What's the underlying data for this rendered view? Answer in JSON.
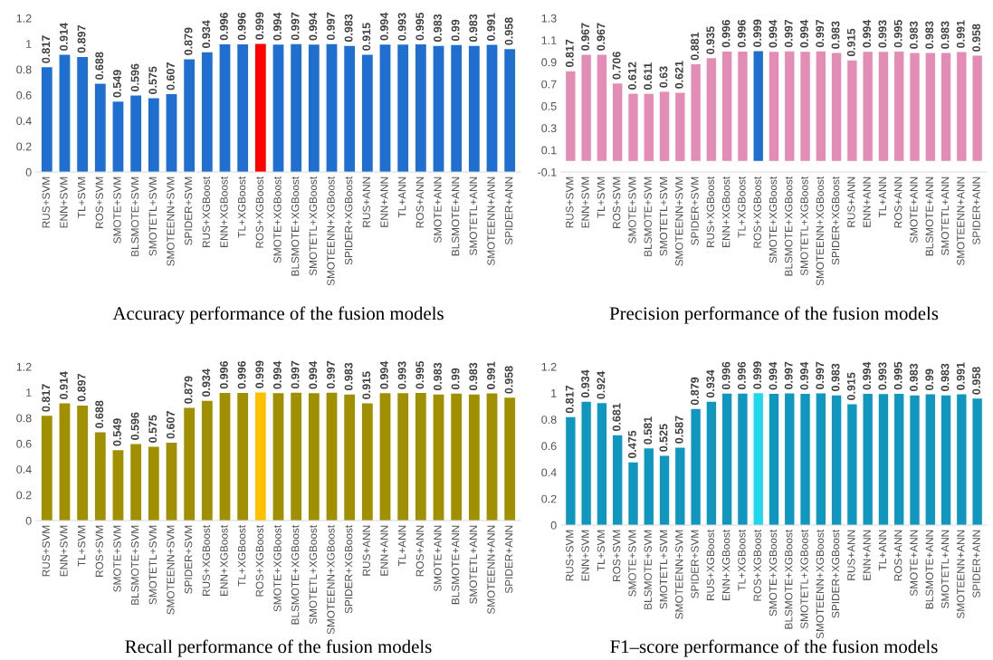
{
  "chart_data": [
    {
      "type": "bar",
      "title": "Accuracy performance of the fusion models",
      "categories": [
        "RUS+SVM",
        "ENN+SVM",
        "TL+SVM",
        "ROS+SVM",
        "SMOTE+SVM",
        "BLSMOTE+SVM",
        "SMOTETL+SVM",
        "SMOTEENN+SVM",
        "SPIDER+SVM",
        "RUS+XGBoost",
        "ENN+XGBoost",
        "TL+XGBoost",
        "ROS+XGBoost",
        "SMOTE+XGBoost",
        "BLSMOTE+XGBoost",
        "SMOTETL+XGBoost",
        "SMOTEENN+XGBoost",
        "SPIDER+XGBoost",
        "RUS+ANN",
        "ENN+ANN",
        "TL+ANN",
        "ROS+ANN",
        "SMOTE+ANN",
        "BLSMOTE+ANN",
        "SMOTETL+ANN",
        "SMOTEENN+ANN",
        "SPIDER+ANN"
      ],
      "values": [
        0.817,
        0.914,
        0.897,
        0.688,
        0.549,
        0.596,
        0.575,
        0.607,
        0.879,
        0.934,
        0.996,
        0.996,
        0.999,
        0.994,
        0.997,
        0.994,
        0.997,
        0.983,
        0.915,
        0.994,
        0.993,
        0.995,
        0.983,
        0.99,
        0.983,
        0.991,
        0.958
      ],
      "colors": [
        "#1f6fd0",
        "#1f6fd0",
        "#1f6fd0",
        "#1f6fd0",
        "#1f6fd0",
        "#1f6fd0",
        "#1f6fd0",
        "#1f6fd0",
        "#1f6fd0",
        "#1f6fd0",
        "#1f6fd0",
        "#1f6fd0",
        "#ff0000",
        "#1f6fd0",
        "#1f6fd0",
        "#1f6fd0",
        "#1f6fd0",
        "#1f6fd0",
        "#1f6fd0",
        "#1f6fd0",
        "#1f6fd0",
        "#1f6fd0",
        "#1f6fd0",
        "#1f6fd0",
        "#1f6fd0",
        "#1f6fd0",
        "#1f6fd0"
      ],
      "ylim": [
        0,
        1.2
      ],
      "yticks": [
        0,
        0.2,
        0.4,
        0.6,
        0.8,
        1,
        1.2
      ],
      "data_labels": true
    },
    {
      "type": "bar",
      "title": "Precision performance of the fusion models",
      "categories": [
        "RUS+SVM",
        "ENN+SVM",
        "TL+SVM",
        "ROS+SVM",
        "SMOTE+SVM",
        "BLSMOTE+SVM",
        "SMOTETL+SVM",
        "SMOTEENN+SVM",
        "SPIDER+SVM",
        "RUS+XGBoost",
        "ENN+XGBoost",
        "TL+XGBoost",
        "ROS+XGBoost",
        "SMOTE+XGBoost",
        "BLSMOTE+XGBoost",
        "SMOTETL+XGBoost",
        "SMOTEENN+XGBoost",
        "SPIDER+XGBoost",
        "RUS+ANN",
        "ENN+ANN",
        "TL+ANN",
        "ROS+ANN",
        "SMOTE+ANN",
        "BLSMOTE+ANN",
        "SMOTETL+ANN",
        "SMOTEENN+ANN",
        "SPIDER+ANN"
      ],
      "values": [
        0.817,
        0.967,
        0.967,
        0.706,
        0.612,
        0.611,
        0.63,
        0.621,
        0.881,
        0.935,
        0.996,
        0.996,
        0.999,
        0.994,
        0.997,
        0.994,
        0.997,
        0.983,
        0.915,
        0.994,
        0.993,
        0.995,
        0.983,
        0.983,
        0.983,
        0.991,
        0.958
      ],
      "colors": [
        "#e38cb5",
        "#e38cb5",
        "#e38cb5",
        "#e38cb5",
        "#e38cb5",
        "#e38cb5",
        "#e38cb5",
        "#e38cb5",
        "#e38cb5",
        "#e38cb5",
        "#e38cb5",
        "#e38cb5",
        "#1f6fd0",
        "#e38cb5",
        "#e38cb5",
        "#e38cb5",
        "#e38cb5",
        "#e38cb5",
        "#e38cb5",
        "#e38cb5",
        "#e38cb5",
        "#e38cb5",
        "#e38cb5",
        "#e38cb5",
        "#e38cb5",
        "#e38cb5",
        "#e38cb5"
      ],
      "ylim": [
        -0.1,
        1.3
      ],
      "yticks": [
        -0.1,
        0.1,
        0.3,
        0.5,
        0.7,
        0.9,
        1.1,
        1.3
      ],
      "data_labels": true
    },
    {
      "type": "bar",
      "title": "Recall performance of the fusion models",
      "categories": [
        "RUS+SVM",
        "ENN+SVM",
        "TL+SVM",
        "ROS+SVM",
        "SMOTE+SVM",
        "BLSMOTE+SVM",
        "SMOTETL+SVM",
        "SMOTEENN+SVM",
        "SPIDER+SVM",
        "RUS+XGBoost",
        "ENN+XGBoost",
        "TL+XGBoost",
        "ROS+XGBoost",
        "SMOTE+XGBoost",
        "BLSMOTE+XGBoost",
        "SMOTETL+XGBoost",
        "SMOTEENN+XGBoost",
        "SPIDER+XGBoost",
        "RUS+ANN",
        "ENN+ANN",
        "TL+ANN",
        "ROS+ANN",
        "SMOTE+ANN",
        "BLSMOTE+ANN",
        "SMOTETL+ANN",
        "SMOTEENN+ANN",
        "SPIDER+ANN"
      ],
      "values": [
        0.817,
        0.914,
        0.897,
        0.688,
        0.549,
        0.596,
        0.575,
        0.607,
        0.879,
        0.934,
        0.996,
        0.996,
        0.999,
        0.994,
        0.997,
        0.994,
        0.997,
        0.983,
        0.915,
        0.994,
        0.993,
        0.995,
        0.983,
        0.99,
        0.983,
        0.991,
        0.958
      ],
      "colors": [
        "#a09000",
        "#a09000",
        "#a09000",
        "#a09000",
        "#a09000",
        "#a09000",
        "#a09000",
        "#a09000",
        "#a09000",
        "#a09000",
        "#a09000",
        "#a09000",
        "#ffc000",
        "#a09000",
        "#a09000",
        "#a09000",
        "#a09000",
        "#a09000",
        "#a09000",
        "#a09000",
        "#a09000",
        "#a09000",
        "#a09000",
        "#a09000",
        "#a09000",
        "#a09000",
        "#a09000"
      ],
      "ylim": [
        0,
        1.2
      ],
      "yticks": [
        0,
        0.2,
        0.4,
        0.6,
        0.8,
        1,
        1.2
      ],
      "data_labels": true
    },
    {
      "type": "bar",
      "title": "F1–score performance of the fusion models",
      "categories": [
        "RUS+SVM",
        "ENN+SVM",
        "TL+SVM",
        "ROS+SVM",
        "SMOTE+SVM",
        "BLSMOTE+SVM",
        "SMOTETL+SVM",
        "SMOTEENN+SVM",
        "SPIDER+SVM",
        "RUS+XGBoost",
        "ENN+XGBoost",
        "TL+XGBoost",
        "ROS+XGBoost",
        "SMOTE+XGBoost",
        "BLSMOTE+XGBoost",
        "SMOTETL+XGBoost",
        "SMOTEENN+XGBoost",
        "SPIDER+XGBoost",
        "RUS+ANN",
        "ENN+ANN",
        "TL+ANN",
        "ROS+ANN",
        "SMOTE+ANN",
        "BLSMOTE+ANN",
        "SMOTETL+ANN",
        "SMOTEENN+ANN",
        "SPIDER+ANN"
      ],
      "values": [
        0.817,
        0.934,
        0.924,
        0.681,
        0.475,
        0.581,
        0.525,
        0.587,
        0.879,
        0.934,
        0.996,
        0.996,
        0.999,
        0.994,
        0.997,
        0.994,
        0.997,
        0.983,
        0.915,
        0.994,
        0.993,
        0.995,
        0.983,
        0.99,
        0.983,
        0.991,
        0.958
      ],
      "colors": [
        "#0f97c0",
        "#0f97c0",
        "#0f97c0",
        "#0f97c0",
        "#0f97c0",
        "#0f97c0",
        "#0f97c0",
        "#0f97c0",
        "#0f97c0",
        "#0f97c0",
        "#0f97c0",
        "#0f97c0",
        "#1ed8ee",
        "#0f97c0",
        "#0f97c0",
        "#0f97c0",
        "#0f97c0",
        "#0f97c0",
        "#0f97c0",
        "#0f97c0",
        "#0f97c0",
        "#0f97c0",
        "#0f97c0",
        "#0f97c0",
        "#0f97c0",
        "#0f97c0",
        "#0f97c0"
      ],
      "ylim": [
        0,
        1.2
      ],
      "yticks": [
        0,
        0.2,
        0.4,
        0.6,
        0.8,
        1,
        1.2
      ],
      "data_labels": true
    }
  ]
}
